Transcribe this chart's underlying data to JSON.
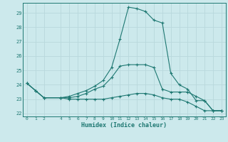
{
  "xlabel": "Humidex (Indice chaleur)",
  "background_color": "#cce9ec",
  "grid_color": "#b8d8dc",
  "line_color": "#1e7872",
  "xlim": [
    -0.5,
    23.5
  ],
  "ylim": [
    21.8,
    29.7
  ],
  "xticks": [
    0,
    1,
    2,
    4,
    5,
    6,
    7,
    8,
    9,
    10,
    11,
    12,
    13,
    14,
    15,
    16,
    17,
    18,
    19,
    20,
    21,
    22,
    23
  ],
  "yticks": [
    22,
    23,
    24,
    25,
    26,
    27,
    28,
    29
  ],
  "line1_x": [
    0,
    1,
    2,
    4,
    5,
    6,
    7,
    8,
    9,
    10,
    11,
    12,
    13,
    14,
    15,
    16,
    17,
    18,
    19,
    20,
    21,
    22,
    23
  ],
  "line1_y": [
    24.1,
    23.6,
    23.1,
    23.1,
    23.2,
    23.4,
    23.6,
    23.9,
    24.3,
    25.2,
    27.2,
    29.4,
    29.3,
    29.1,
    28.5,
    28.3,
    24.8,
    24.0,
    23.7,
    22.9,
    22.9,
    22.2,
    22.2
  ],
  "line2_x": [
    0,
    1,
    2,
    4,
    5,
    6,
    7,
    8,
    9,
    10,
    11,
    12,
    13,
    14,
    15,
    16,
    17,
    18,
    19,
    20,
    21,
    22,
    23
  ],
  "line2_y": [
    24.1,
    23.6,
    23.1,
    23.1,
    23.1,
    23.2,
    23.4,
    23.7,
    23.9,
    24.5,
    25.3,
    25.4,
    25.4,
    25.4,
    25.2,
    23.7,
    23.5,
    23.5,
    23.5,
    23.2,
    22.9,
    22.2,
    22.2
  ],
  "line3_x": [
    0,
    1,
    2,
    4,
    5,
    6,
    7,
    8,
    9,
    10,
    11,
    12,
    13,
    14,
    15,
    16,
    17,
    18,
    19,
    20,
    21,
    22,
    23
  ],
  "line3_y": [
    24.1,
    23.6,
    23.1,
    23.1,
    23.0,
    23.0,
    23.0,
    23.0,
    23.0,
    23.1,
    23.2,
    23.3,
    23.4,
    23.4,
    23.3,
    23.1,
    23.0,
    23.0,
    22.8,
    22.5,
    22.2,
    22.2,
    22.2
  ]
}
